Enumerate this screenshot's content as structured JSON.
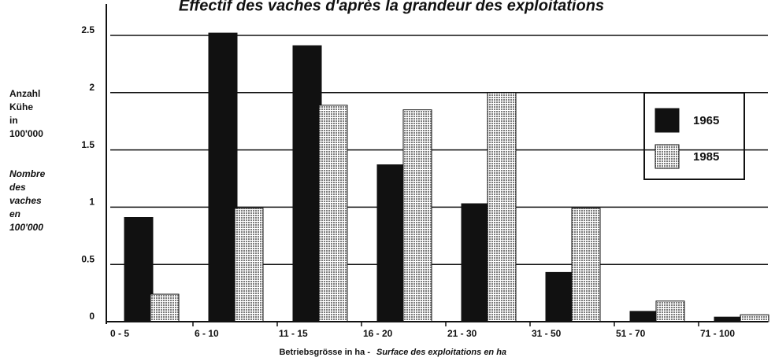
{
  "chart_data": {
    "type": "bar",
    "title": "Effectif des vaches d'après la grandeur des exploitations",
    "y_label_de": [
      "Anzahl",
      "Kühe",
      "in",
      "100'000"
    ],
    "y_label_fr": [
      "Nombre",
      "des",
      "vaches",
      "en",
      "100'000"
    ],
    "x_label_de": "Betriebsgrösse in ha  -",
    "x_label_fr": "Surface des exploitations en ha",
    "categories": [
      "0 - 5",
      "6 - 10",
      "11 - 15",
      "16 - 20",
      "21 - 30",
      "31 - 50",
      "51 - 70",
      "71 - 100"
    ],
    "series": [
      {
        "name": "1965",
        "color": "#111111",
        "values": [
          0.91,
          2.52,
          2.41,
          1.37,
          1.03,
          0.43,
          0.09,
          0.04
        ]
      },
      {
        "name": "1985",
        "color": "#8c8c8c",
        "values": [
          0.24,
          0.99,
          1.89,
          1.85,
          2.0,
          0.99,
          0.18,
          0.06
        ]
      }
    ],
    "ylim": [
      0,
      2.5
    ],
    "yticks": [
      0,
      0.5,
      1,
      1.5,
      2,
      2.5
    ],
    "grid": true,
    "legend": "right"
  }
}
